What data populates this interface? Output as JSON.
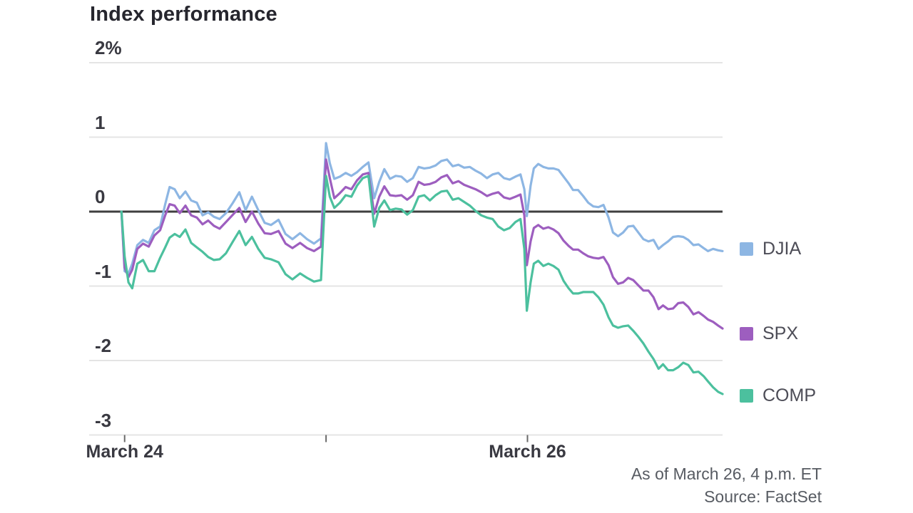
{
  "chart_data": {
    "type": "line",
    "title": "Index performance",
    "unit": "percent",
    "ylim": [
      -3,
      2
    ],
    "grid": true,
    "zero_line": true,
    "legend_position": "right",
    "yticks": [
      {
        "value": 2,
        "label": "2%"
      },
      {
        "value": 1,
        "label": "1"
      },
      {
        "value": 0,
        "label": "0"
      },
      {
        "value": -1,
        "label": "-1"
      },
      {
        "value": -2,
        "label": "-2"
      },
      {
        "value": -3,
        "label": "-3"
      }
    ],
    "xticks": [
      {
        "t": 0.056,
        "label": "March 24"
      },
      {
        "t": 0.374,
        "label": ""
      },
      {
        "t": 0.692,
        "label": "March 26"
      }
    ],
    "t": [
      0.051,
      0.056,
      0.062,
      0.068,
      0.076,
      0.085,
      0.094,
      0.103,
      0.112,
      0.12,
      0.127,
      0.135,
      0.143,
      0.152,
      0.161,
      0.17,
      0.179,
      0.188,
      0.197,
      0.206,
      0.216,
      0.227,
      0.237,
      0.247,
      0.257,
      0.267,
      0.277,
      0.287,
      0.299,
      0.31,
      0.321,
      0.333,
      0.344,
      0.355,
      0.366,
      0.374,
      0.38,
      0.387,
      0.396,
      0.405,
      0.414,
      0.423,
      0.432,
      0.441,
      0.45,
      0.458,
      0.466,
      0.475,
      0.484,
      0.493,
      0.502,
      0.511,
      0.52,
      0.529,
      0.538,
      0.547,
      0.556,
      0.565,
      0.574,
      0.583,
      0.592,
      0.601,
      0.61,
      0.619,
      0.628,
      0.637,
      0.646,
      0.655,
      0.664,
      0.673,
      0.681,
      0.687,
      0.691,
      0.697,
      0.702,
      0.709,
      0.717,
      0.725,
      0.733,
      0.741,
      0.749,
      0.757,
      0.764,
      0.772,
      0.78,
      0.788,
      0.796,
      0.804,
      0.812,
      0.82,
      0.827,
      0.835,
      0.843,
      0.851,
      0.859,
      0.867,
      0.875,
      0.883,
      0.891,
      0.899,
      0.906,
      0.914,
      0.922,
      0.93,
      0.938,
      0.946,
      0.954,
      0.962,
      0.97,
      0.977,
      0.985,
      0.993,
      1.0
    ],
    "series": [
      {
        "name": "DJIA",
        "color": "#8db6e3",
        "values": [
          0.0,
          -0.8,
          -0.83,
          -0.7,
          -0.45,
          -0.38,
          -0.42,
          -0.25,
          -0.2,
          0.1,
          0.33,
          0.3,
          0.18,
          0.27,
          0.15,
          0.12,
          -0.05,
          -0.01,
          -0.07,
          -0.1,
          -0.02,
          0.12,
          0.26,
          0.02,
          0.2,
          0.02,
          -0.15,
          -0.18,
          -0.11,
          -0.3,
          -0.37,
          -0.29,
          -0.37,
          -0.43,
          -0.36,
          0.92,
          0.65,
          0.44,
          0.47,
          0.52,
          0.48,
          0.53,
          0.6,
          0.66,
          0.18,
          0.4,
          0.57,
          0.44,
          0.48,
          0.47,
          0.4,
          0.45,
          0.6,
          0.58,
          0.59,
          0.62,
          0.68,
          0.7,
          0.61,
          0.63,
          0.59,
          0.6,
          0.55,
          0.51,
          0.45,
          0.5,
          0.52,
          0.45,
          0.43,
          0.47,
          0.5,
          0.3,
          -0.06,
          0.35,
          0.58,
          0.64,
          0.6,
          0.58,
          0.58,
          0.56,
          0.47,
          0.38,
          0.29,
          0.29,
          0.21,
          0.12,
          0.07,
          0.06,
          0.09,
          -0.08,
          -0.28,
          -0.33,
          -0.28,
          -0.2,
          -0.19,
          -0.28,
          -0.37,
          -0.4,
          -0.38,
          -0.5,
          -0.45,
          -0.4,
          -0.34,
          -0.33,
          -0.34,
          -0.38,
          -0.45,
          -0.44,
          -0.49,
          -0.53,
          -0.5,
          -0.52,
          -0.53
        ]
      },
      {
        "name": "SPX",
        "color": "#9d5ebf",
        "values": [
          0.0,
          -0.75,
          -0.88,
          -0.78,
          -0.5,
          -0.43,
          -0.47,
          -0.32,
          -0.25,
          -0.05,
          0.1,
          0.08,
          -0.02,
          0.08,
          -0.05,
          -0.08,
          -0.17,
          -0.12,
          -0.19,
          -0.23,
          -0.14,
          -0.04,
          0.05,
          -0.14,
          0.0,
          -0.16,
          -0.29,
          -0.3,
          -0.26,
          -0.43,
          -0.49,
          -0.42,
          -0.49,
          -0.53,
          -0.47,
          0.7,
          0.45,
          0.18,
          0.25,
          0.33,
          0.3,
          0.42,
          0.5,
          0.52,
          -0.03,
          0.2,
          0.34,
          0.22,
          0.21,
          0.22,
          0.16,
          0.22,
          0.4,
          0.36,
          0.37,
          0.4,
          0.46,
          0.49,
          0.38,
          0.41,
          0.36,
          0.33,
          0.3,
          0.26,
          0.21,
          0.24,
          0.26,
          0.19,
          0.17,
          0.2,
          0.23,
          -0.05,
          -0.72,
          -0.4,
          -0.22,
          -0.18,
          -0.23,
          -0.21,
          -0.24,
          -0.29,
          -0.39,
          -0.46,
          -0.51,
          -0.51,
          -0.56,
          -0.6,
          -0.62,
          -0.63,
          -0.61,
          -0.72,
          -0.88,
          -0.97,
          -0.95,
          -0.89,
          -0.92,
          -0.99,
          -1.06,
          -1.06,
          -1.15,
          -1.31,
          -1.26,
          -1.31,
          -1.3,
          -1.23,
          -1.22,
          -1.28,
          -1.38,
          -1.35,
          -1.4,
          -1.45,
          -1.48,
          -1.53,
          -1.57
        ]
      },
      {
        "name": "COMP",
        "color": "#4cc09e",
        "values": [
          0.0,
          -0.6,
          -0.95,
          -1.03,
          -0.7,
          -0.65,
          -0.8,
          -0.8,
          -0.62,
          -0.48,
          -0.35,
          -0.3,
          -0.34,
          -0.24,
          -0.42,
          -0.48,
          -0.54,
          -0.61,
          -0.65,
          -0.64,
          -0.56,
          -0.4,
          -0.26,
          -0.45,
          -0.34,
          -0.5,
          -0.62,
          -0.64,
          -0.68,
          -0.84,
          -0.91,
          -0.83,
          -0.89,
          -0.94,
          -0.92,
          0.48,
          0.2,
          0.05,
          0.12,
          0.22,
          0.2,
          0.35,
          0.45,
          0.48,
          -0.2,
          0.05,
          0.15,
          0.02,
          0.04,
          0.03,
          -0.04,
          0.02,
          0.2,
          0.22,
          0.15,
          0.22,
          0.27,
          0.28,
          0.16,
          0.18,
          0.13,
          0.08,
          0.01,
          -0.05,
          -0.08,
          -0.1,
          -0.2,
          -0.25,
          -0.22,
          -0.14,
          -0.1,
          -0.5,
          -1.33,
          -0.95,
          -0.7,
          -0.66,
          -0.73,
          -0.7,
          -0.73,
          -0.78,
          -0.93,
          -1.03,
          -1.1,
          -1.1,
          -1.08,
          -1.08,
          -1.08,
          -1.15,
          -1.25,
          -1.42,
          -1.53,
          -1.56,
          -1.54,
          -1.53,
          -1.6,
          -1.68,
          -1.77,
          -1.88,
          -1.98,
          -2.11,
          -2.05,
          -2.13,
          -2.13,
          -2.09,
          -2.03,
          -2.06,
          -2.16,
          -2.15,
          -2.21,
          -2.28,
          -2.36,
          -2.42,
          -2.45
        ]
      }
    ],
    "footnotes": [
      "As of March 26, 4 p.m. ET",
      "Source: FactSet"
    ],
    "colors": {
      "grid": "#e4e4e4",
      "zero_line": "#3f3f3f",
      "tick_mark": "#6a6a6a"
    }
  }
}
